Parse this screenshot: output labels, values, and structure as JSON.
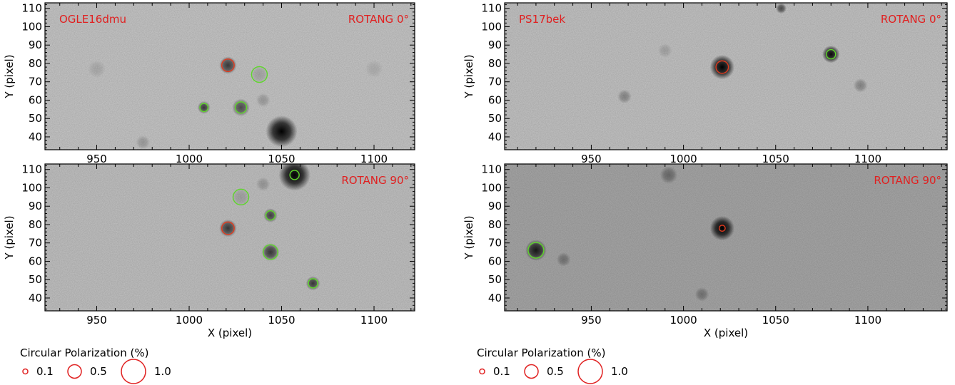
{
  "chart_data": [
    {
      "type": "scatter",
      "target": "OGLE16dmu",
      "rotang": "ROTANG  0°",
      "xlim": [
        922,
        1122
      ],
      "ylim": [
        33,
        113
      ],
      "xticks": [
        950,
        1000,
        1050,
        1100
      ],
      "yticks": [
        40,
        50,
        60,
        70,
        80,
        90,
        100,
        110
      ],
      "xlabel": "",
      "ylabel": "Y (pixel)",
      "sources": [
        {
          "x": 1021,
          "y": 79,
          "r": 2.5,
          "dark": 0.7
        },
        {
          "x": 1008,
          "y": 56,
          "r": 1.8,
          "dark": 0.7
        },
        {
          "x": 1028,
          "y": 56,
          "r": 2.5,
          "dark": 0.6
        },
        {
          "x": 1038,
          "y": 74,
          "r": 2.5,
          "dark": 0.15
        },
        {
          "x": 1050,
          "y": 43,
          "r": 4.5,
          "dark": 1.0
        },
        {
          "x": 1040,
          "y": 60,
          "r": 2.0,
          "dark": 0.2
        },
        {
          "x": 950,
          "y": 77,
          "r": 2.5,
          "dark": 0.12
        },
        {
          "x": 1100,
          "y": 77,
          "r": 2.5,
          "dark": 0.1
        },
        {
          "x": 975,
          "y": 37,
          "r": 2.0,
          "dark": 0.2
        }
      ],
      "markers": [
        {
          "x": 1021,
          "y": 79,
          "pol": 0.45,
          "color": "#e03a1e"
        },
        {
          "x": 1008,
          "y": 56,
          "pol": 0.25,
          "color": "#5ed82a"
        },
        {
          "x": 1028,
          "y": 56,
          "pol": 0.4,
          "color": "#5ed82a"
        },
        {
          "x": 1038,
          "y": 74,
          "pol": 0.6,
          "color": "#5ed82a"
        }
      ]
    },
    {
      "type": "scatter",
      "target": "",
      "rotang": "ROTANG 90°",
      "xlim": [
        922,
        1122
      ],
      "ylim": [
        33,
        113
      ],
      "xticks": [
        950,
        1000,
        1050,
        1100
      ],
      "yticks": [
        40,
        50,
        60,
        70,
        80,
        90,
        100,
        110
      ],
      "xlabel": "X (pixel)",
      "ylabel": "Y (pixel)",
      "sources": [
        {
          "x": 1021,
          "y": 78,
          "r": 2.5,
          "dark": 0.7
        },
        {
          "x": 1044,
          "y": 85,
          "r": 2.0,
          "dark": 0.65
        },
        {
          "x": 1044,
          "y": 65,
          "r": 2.5,
          "dark": 0.7
        },
        {
          "x": 1067,
          "y": 48,
          "r": 2.0,
          "dark": 0.7
        },
        {
          "x": 1057,
          "y": 107,
          "r": 4.5,
          "dark": 1.0
        },
        {
          "x": 1028,
          "y": 95,
          "r": 2.5,
          "dark": 0.15
        },
        {
          "x": 1040,
          "y": 102,
          "r": 2.0,
          "dark": 0.2
        }
      ],
      "markers": [
        {
          "x": 1021,
          "y": 78,
          "pol": 0.45,
          "color": "#e03a1e"
        },
        {
          "x": 1028,
          "y": 95,
          "pol": 0.6,
          "color": "#5ed82a"
        },
        {
          "x": 1044,
          "y": 85,
          "pol": 0.3,
          "color": "#5ed82a"
        },
        {
          "x": 1044,
          "y": 65,
          "pol": 0.55,
          "color": "#5ed82a"
        },
        {
          "x": 1067,
          "y": 48,
          "pol": 0.3,
          "color": "#5ed82a"
        },
        {
          "x": 1057,
          "y": 107,
          "pol": 0.3,
          "color": "#5ed82a"
        }
      ]
    },
    {
      "type": "scatter",
      "target": "PS17bek",
      "rotang": "ROTANG 0°",
      "xlim": [
        903,
        1143
      ],
      "ylim": [
        33,
        113
      ],
      "xticks": [
        950,
        1000,
        1050,
        1100
      ],
      "yticks": [
        40,
        50,
        60,
        70,
        80,
        90,
        100,
        110
      ],
      "xlabel": "",
      "ylabel": "Y (pixel)",
      "sources": [
        {
          "x": 1021,
          "y": 78,
          "r": 3.5,
          "dark": 1.0
        },
        {
          "x": 1080,
          "y": 85,
          "r": 2.5,
          "dark": 0.95
        },
        {
          "x": 968,
          "y": 62,
          "r": 2.0,
          "dark": 0.3
        },
        {
          "x": 1096,
          "y": 68,
          "r": 2.0,
          "dark": 0.3
        },
        {
          "x": 990,
          "y": 87,
          "r": 2.0,
          "dark": 0.15
        },
        {
          "x": 1053,
          "y": 110,
          "r": 1.5,
          "dark": 0.6
        }
      ],
      "markers": [
        {
          "x": 1021,
          "y": 78,
          "pol": 0.45,
          "color": "#e03a1e"
        },
        {
          "x": 1080,
          "y": 85,
          "pol": 0.3,
          "color": "#5ed82a"
        }
      ]
    },
    {
      "type": "scatter",
      "target": "",
      "rotang": "ROTANG 90°",
      "xlim": [
        903,
        1143
      ],
      "ylim": [
        33,
        113
      ],
      "xticks": [
        950,
        1000,
        1050,
        1100
      ],
      "yticks": [
        40,
        50,
        60,
        70,
        80,
        90,
        100,
        110
      ],
      "xlabel": "X (pixel)",
      "ylabel": "Y (pixel)",
      "sources": [
        {
          "x": 1021,
          "y": 78,
          "r": 3.5,
          "dark": 1.0
        },
        {
          "x": 920,
          "y": 66,
          "r": 3.0,
          "dark": 0.85
        },
        {
          "x": 935,
          "y": 61,
          "r": 2.0,
          "dark": 0.3
        },
        {
          "x": 992,
          "y": 107,
          "r": 2.5,
          "dark": 0.35
        },
        {
          "x": 1010,
          "y": 42,
          "r": 2.0,
          "dark": 0.3
        }
      ],
      "markers": [
        {
          "x": 1021,
          "y": 78,
          "pol": 0.15,
          "color": "#e03a1e"
        },
        {
          "x": 920,
          "y": 66,
          "pol": 0.6,
          "color": "#5ed82a"
        }
      ]
    }
  ],
  "legend": {
    "title": "Circular Polarization (%)",
    "items": [
      {
        "label": "0.1",
        "pol": 0.1
      },
      {
        "label": "0.5",
        "pol": 0.5
      },
      {
        "label": "1.0",
        "pol": 1.0
      }
    ],
    "color": "#e02020"
  },
  "colors": {
    "annotation": "#e02020",
    "background_light": "#c8c8c8",
    "background_dark": "#a8a8a8"
  }
}
